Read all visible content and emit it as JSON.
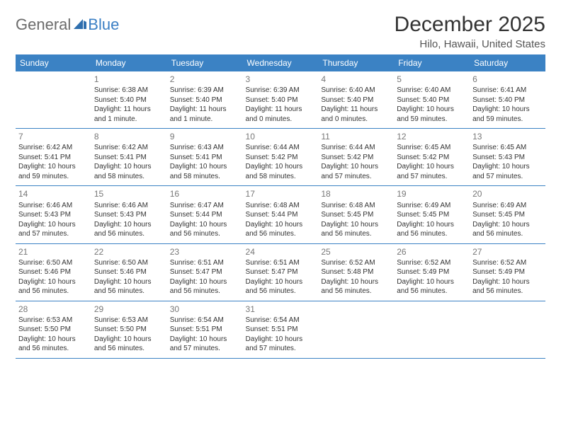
{
  "logo": {
    "general": "General",
    "blue": "Blue",
    "icon_fill": "#2f6fae"
  },
  "title": "December 2025",
  "location": "Hilo, Hawaii, United States",
  "colors": {
    "header_bg": "#3b82c4",
    "header_text": "#ffffff",
    "rule": "#3b82c4",
    "body_text": "#333333",
    "daynum": "#777777"
  },
  "day_headers": [
    "Sunday",
    "Monday",
    "Tuesday",
    "Wednesday",
    "Thursday",
    "Friday",
    "Saturday"
  ],
  "weeks": [
    [
      {
        "n": "",
        "sr": "",
        "ss": "",
        "dl": ""
      },
      {
        "n": "1",
        "sr": "Sunrise: 6:38 AM",
        "ss": "Sunset: 5:40 PM",
        "dl": "Daylight: 11 hours and 1 minute."
      },
      {
        "n": "2",
        "sr": "Sunrise: 6:39 AM",
        "ss": "Sunset: 5:40 PM",
        "dl": "Daylight: 11 hours and 1 minute."
      },
      {
        "n": "3",
        "sr": "Sunrise: 6:39 AM",
        "ss": "Sunset: 5:40 PM",
        "dl": "Daylight: 11 hours and 0 minutes."
      },
      {
        "n": "4",
        "sr": "Sunrise: 6:40 AM",
        "ss": "Sunset: 5:40 PM",
        "dl": "Daylight: 11 hours and 0 minutes."
      },
      {
        "n": "5",
        "sr": "Sunrise: 6:40 AM",
        "ss": "Sunset: 5:40 PM",
        "dl": "Daylight: 10 hours and 59 minutes."
      },
      {
        "n": "6",
        "sr": "Sunrise: 6:41 AM",
        "ss": "Sunset: 5:40 PM",
        "dl": "Daylight: 10 hours and 59 minutes."
      }
    ],
    [
      {
        "n": "7",
        "sr": "Sunrise: 6:42 AM",
        "ss": "Sunset: 5:41 PM",
        "dl": "Daylight: 10 hours and 59 minutes."
      },
      {
        "n": "8",
        "sr": "Sunrise: 6:42 AM",
        "ss": "Sunset: 5:41 PM",
        "dl": "Daylight: 10 hours and 58 minutes."
      },
      {
        "n": "9",
        "sr": "Sunrise: 6:43 AM",
        "ss": "Sunset: 5:41 PM",
        "dl": "Daylight: 10 hours and 58 minutes."
      },
      {
        "n": "10",
        "sr": "Sunrise: 6:44 AM",
        "ss": "Sunset: 5:42 PM",
        "dl": "Daylight: 10 hours and 58 minutes."
      },
      {
        "n": "11",
        "sr": "Sunrise: 6:44 AM",
        "ss": "Sunset: 5:42 PM",
        "dl": "Daylight: 10 hours and 57 minutes."
      },
      {
        "n": "12",
        "sr": "Sunrise: 6:45 AM",
        "ss": "Sunset: 5:42 PM",
        "dl": "Daylight: 10 hours and 57 minutes."
      },
      {
        "n": "13",
        "sr": "Sunrise: 6:45 AM",
        "ss": "Sunset: 5:43 PM",
        "dl": "Daylight: 10 hours and 57 minutes."
      }
    ],
    [
      {
        "n": "14",
        "sr": "Sunrise: 6:46 AM",
        "ss": "Sunset: 5:43 PM",
        "dl": "Daylight: 10 hours and 57 minutes."
      },
      {
        "n": "15",
        "sr": "Sunrise: 6:46 AM",
        "ss": "Sunset: 5:43 PM",
        "dl": "Daylight: 10 hours and 56 minutes."
      },
      {
        "n": "16",
        "sr": "Sunrise: 6:47 AM",
        "ss": "Sunset: 5:44 PM",
        "dl": "Daylight: 10 hours and 56 minutes."
      },
      {
        "n": "17",
        "sr": "Sunrise: 6:48 AM",
        "ss": "Sunset: 5:44 PM",
        "dl": "Daylight: 10 hours and 56 minutes."
      },
      {
        "n": "18",
        "sr": "Sunrise: 6:48 AM",
        "ss": "Sunset: 5:45 PM",
        "dl": "Daylight: 10 hours and 56 minutes."
      },
      {
        "n": "19",
        "sr": "Sunrise: 6:49 AM",
        "ss": "Sunset: 5:45 PM",
        "dl": "Daylight: 10 hours and 56 minutes."
      },
      {
        "n": "20",
        "sr": "Sunrise: 6:49 AM",
        "ss": "Sunset: 5:45 PM",
        "dl": "Daylight: 10 hours and 56 minutes."
      }
    ],
    [
      {
        "n": "21",
        "sr": "Sunrise: 6:50 AM",
        "ss": "Sunset: 5:46 PM",
        "dl": "Daylight: 10 hours and 56 minutes."
      },
      {
        "n": "22",
        "sr": "Sunrise: 6:50 AM",
        "ss": "Sunset: 5:46 PM",
        "dl": "Daylight: 10 hours and 56 minutes."
      },
      {
        "n": "23",
        "sr": "Sunrise: 6:51 AM",
        "ss": "Sunset: 5:47 PM",
        "dl": "Daylight: 10 hours and 56 minutes."
      },
      {
        "n": "24",
        "sr": "Sunrise: 6:51 AM",
        "ss": "Sunset: 5:47 PM",
        "dl": "Daylight: 10 hours and 56 minutes."
      },
      {
        "n": "25",
        "sr": "Sunrise: 6:52 AM",
        "ss": "Sunset: 5:48 PM",
        "dl": "Daylight: 10 hours and 56 minutes."
      },
      {
        "n": "26",
        "sr": "Sunrise: 6:52 AM",
        "ss": "Sunset: 5:49 PM",
        "dl": "Daylight: 10 hours and 56 minutes."
      },
      {
        "n": "27",
        "sr": "Sunrise: 6:52 AM",
        "ss": "Sunset: 5:49 PM",
        "dl": "Daylight: 10 hours and 56 minutes."
      }
    ],
    [
      {
        "n": "28",
        "sr": "Sunrise: 6:53 AM",
        "ss": "Sunset: 5:50 PM",
        "dl": "Daylight: 10 hours and 56 minutes."
      },
      {
        "n": "29",
        "sr": "Sunrise: 6:53 AM",
        "ss": "Sunset: 5:50 PM",
        "dl": "Daylight: 10 hours and 56 minutes."
      },
      {
        "n": "30",
        "sr": "Sunrise: 6:54 AM",
        "ss": "Sunset: 5:51 PM",
        "dl": "Daylight: 10 hours and 57 minutes."
      },
      {
        "n": "31",
        "sr": "Sunrise: 6:54 AM",
        "ss": "Sunset: 5:51 PM",
        "dl": "Daylight: 10 hours and 57 minutes."
      },
      {
        "n": "",
        "sr": "",
        "ss": "",
        "dl": ""
      },
      {
        "n": "",
        "sr": "",
        "ss": "",
        "dl": ""
      },
      {
        "n": "",
        "sr": "",
        "ss": "",
        "dl": ""
      }
    ]
  ]
}
